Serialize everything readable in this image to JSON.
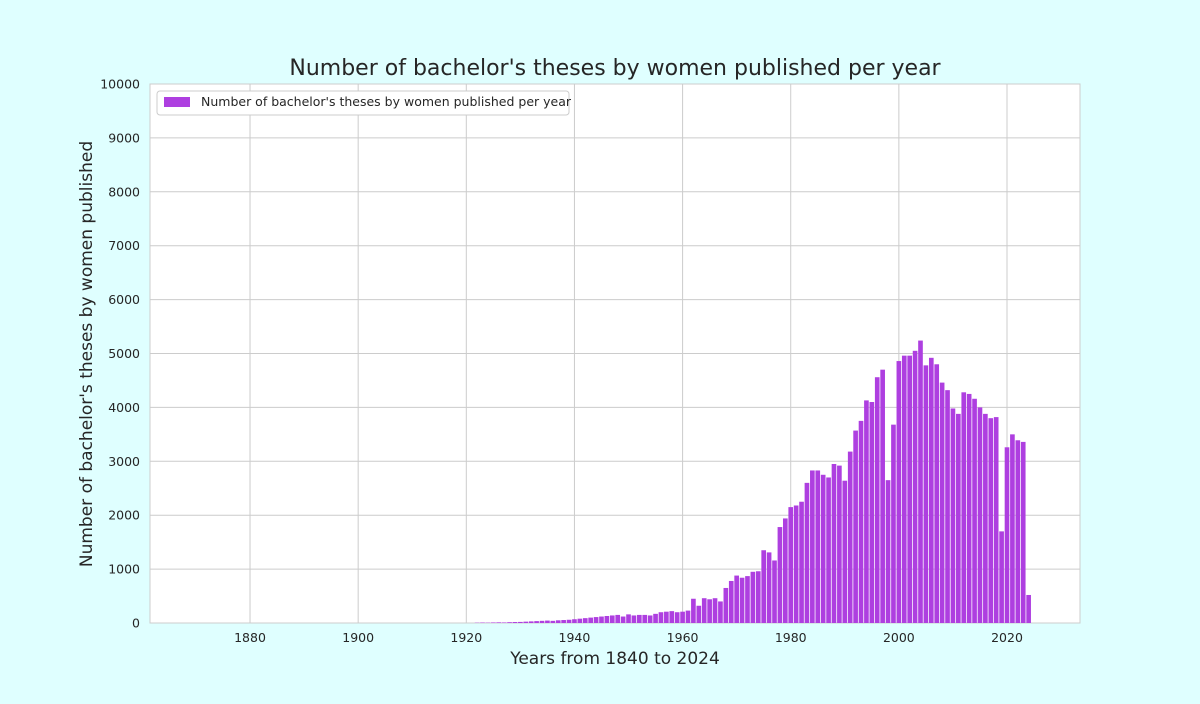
{
  "colors": {
    "page_background": "#dfffff",
    "plot_background": "#ffffff",
    "grid": "#cccccc",
    "bar": "#ae3fe0",
    "text": "#262626"
  },
  "chart_data": {
    "type": "bar",
    "title": "Number of bachelor's theses by women published per year",
    "xlabel": "Years from 1840 to 2024",
    "ylabel": "Number of bachelor's theses by women published",
    "xlim": [
      1861.5,
      2033.5
    ],
    "ylim": [
      0,
      10000
    ],
    "xticks": [
      1880,
      1900,
      1920,
      1940,
      1960,
      1980,
      2000,
      2020
    ],
    "yticks": [
      0,
      1000,
      2000,
      3000,
      4000,
      5000,
      6000,
      7000,
      8000,
      9000,
      10000
    ],
    "grid": true,
    "legend_position": "top-left",
    "series": [
      {
        "name": "Number of bachelor's theses by women published per year",
        "x": [
          1922,
          1923,
          1924,
          1925,
          1926,
          1927,
          1928,
          1929,
          1930,
          1931,
          1932,
          1933,
          1934,
          1935,
          1936,
          1937,
          1938,
          1939,
          1940,
          1941,
          1942,
          1943,
          1944,
          1945,
          1946,
          1947,
          1948,
          1949,
          1950,
          1951,
          1952,
          1953,
          1954,
          1955,
          1956,
          1957,
          1958,
          1959,
          1960,
          1961,
          1962,
          1963,
          1964,
          1965,
          1966,
          1967,
          1968,
          1969,
          1970,
          1971,
          1972,
          1973,
          1974,
          1975,
          1976,
          1977,
          1978,
          1979,
          1980,
          1981,
          1982,
          1983,
          1984,
          1985,
          1986,
          1987,
          1988,
          1989,
          1990,
          1991,
          1992,
          1993,
          1994,
          1995,
          1996,
          1997,
          1998,
          1999,
          2000,
          2001,
          2002,
          2003,
          2004,
          2005,
          2006,
          2007,
          2008,
          2009,
          2010,
          2011,
          2012,
          2013,
          2014,
          2015,
          2016,
          2017,
          2018,
          2019,
          2020,
          2021,
          2022,
          2023,
          2024
        ],
        "values": [
          5,
          8,
          6,
          10,
          12,
          10,
          15,
          18,
          20,
          25,
          30,
          35,
          40,
          45,
          40,
          50,
          55,
          60,
          70,
          80,
          90,
          100,
          110,
          120,
          130,
          140,
          150,
          120,
          160,
          140,
          150,
          150,
          140,
          170,
          200,
          210,
          220,
          200,
          210,
          230,
          450,
          320,
          460,
          440,
          460,
          400,
          650,
          780,
          880,
          840,
          870,
          950,
          960,
          1350,
          1310,
          1160,
          1780,
          1940,
          2150,
          2180,
          2250,
          2600,
          2830,
          2830,
          2750,
          2700,
          2950,
          2920,
          2640,
          3180,
          3570,
          3750,
          4130,
          4100,
          4560,
          4700,
          2650,
          3680,
          4860,
          4960,
          4960,
          5050,
          5240,
          4780,
          4920,
          4800,
          4460,
          4320,
          3980,
          3880,
          4280,
          4250,
          4160,
          4000,
          3880,
          3800,
          3820,
          1700,
          3260,
          3500,
          3390,
          3360,
          520
        ]
      }
    ]
  }
}
